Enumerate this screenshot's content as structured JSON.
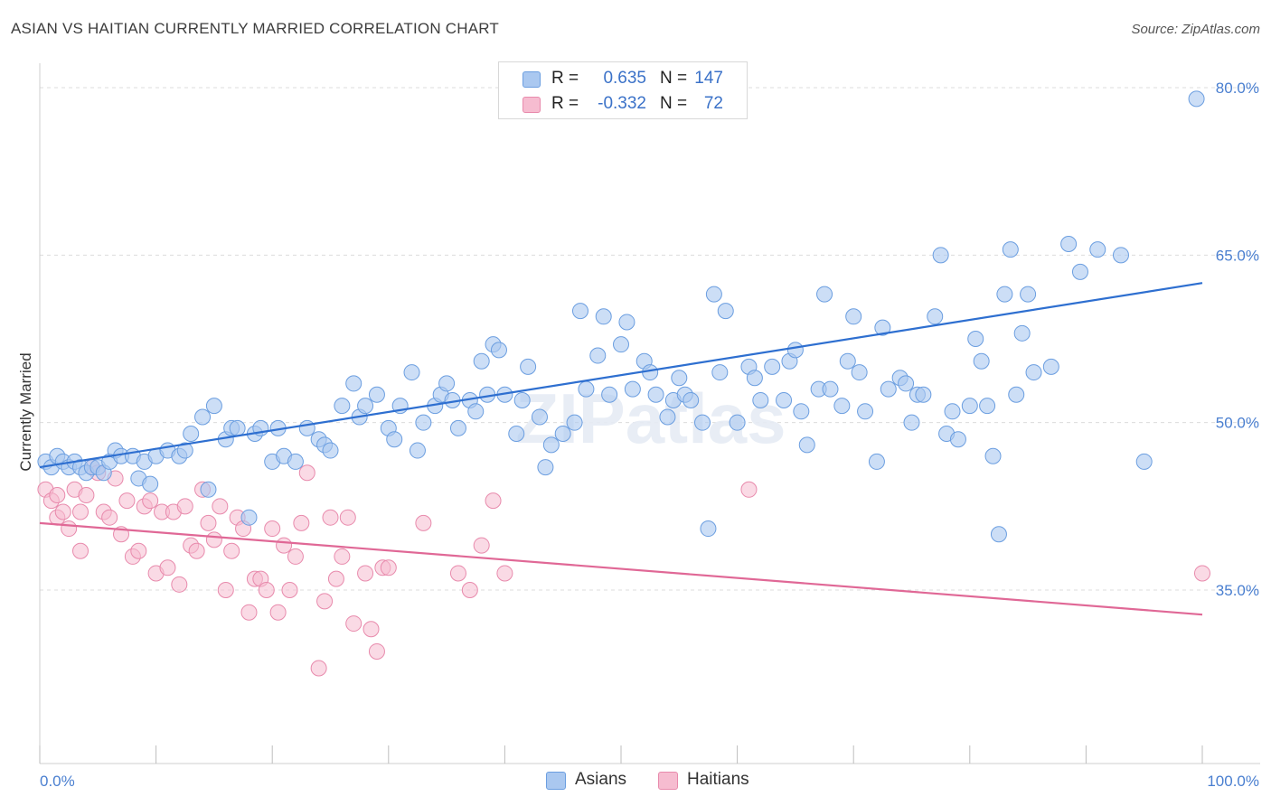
{
  "title": "ASIAN VS HAITIAN CURRENTLY MARRIED CORRELATION CHART",
  "source": "Source: ZipAtlas.com",
  "watermark": "ZIPatlas",
  "colors": {
    "asian_fill": "#aac8f0",
    "asian_stroke": "#6b9ee0",
    "asian_line": "#2e6fd0",
    "haitian_fill": "#f6bcd0",
    "haitian_stroke": "#e88aac",
    "haitian_line": "#e06896",
    "tick_text": "#4a7fd0",
    "grid": "#dcdcdc"
  },
  "legend": {
    "rows": [
      {
        "r_label": "R =",
        "r_value": "0.635",
        "n_label": "N =",
        "n_value": "147"
      },
      {
        "r_label": "R =",
        "r_value": "-0.332",
        "n_label": "N =",
        "n_value": "72"
      }
    ]
  },
  "bottom_legend": {
    "asians": "Asians",
    "haitians": "Haitians"
  },
  "chart_data": {
    "type": "scatter",
    "title": "ASIAN VS HAITIAN CURRENTLY MARRIED CORRELATION CHART",
    "xlabel": "",
    "ylabel": "Currently Married",
    "xlim": [
      0,
      100
    ],
    "ylim": [
      20,
      83
    ],
    "x_tick_labels": [
      "0.0%",
      "100.0%"
    ],
    "y_tick_labels": [
      "35.0%",
      "50.0%",
      "65.0%",
      "80.0%"
    ],
    "y_ticks": [
      35,
      50,
      65,
      80
    ],
    "grid": true,
    "legend_position": "top-center",
    "series": [
      {
        "name": "Asians",
        "r": 0.635,
        "n": 147,
        "trend": {
          "x": [
            0,
            100
          ],
          "y": [
            46.0,
            62.5
          ]
        },
        "points": [
          [
            0.5,
            46.5
          ],
          [
            1,
            46
          ],
          [
            1.5,
            47
          ],
          [
            2,
            46.5
          ],
          [
            2.5,
            46
          ],
          [
            3,
            46.5
          ],
          [
            3.5,
            46
          ],
          [
            4,
            45.5
          ],
          [
            4.5,
            46
          ],
          [
            5,
            46
          ],
          [
            5.5,
            45.5
          ],
          [
            6,
            46.5
          ],
          [
            6.5,
            47.5
          ],
          [
            7,
            47
          ],
          [
            8,
            47
          ],
          [
            8.5,
            45
          ],
          [
            9,
            46.5
          ],
          [
            9.5,
            44.5
          ],
          [
            10,
            47
          ],
          [
            11,
            47.5
          ],
          [
            12,
            47
          ],
          [
            12.5,
            47.5
          ],
          [
            13,
            49
          ],
          [
            14,
            50.5
          ],
          [
            14.5,
            44
          ],
          [
            15,
            51.5
          ],
          [
            16,
            48.5
          ],
          [
            16.5,
            49.5
          ],
          [
            17,
            49.5
          ],
          [
            18,
            41.5
          ],
          [
            18.5,
            49
          ],
          [
            19,
            49.5
          ],
          [
            20,
            46.5
          ],
          [
            20.5,
            49.5
          ],
          [
            21,
            47
          ],
          [
            22,
            46.5
          ],
          [
            23,
            49.5
          ],
          [
            24,
            48.5
          ],
          [
            24.5,
            48
          ],
          [
            25,
            47.5
          ],
          [
            26,
            51.5
          ],
          [
            27,
            53.5
          ],
          [
            27.5,
            50.5
          ],
          [
            28,
            51.5
          ],
          [
            29,
            52.5
          ],
          [
            30,
            49.5
          ],
          [
            30.5,
            48.5
          ],
          [
            31,
            51.5
          ],
          [
            32,
            54.5
          ],
          [
            32.5,
            47.5
          ],
          [
            33,
            50
          ],
          [
            34,
            51.5
          ],
          [
            34.5,
            52.5
          ],
          [
            35,
            53.5
          ],
          [
            35.5,
            52
          ],
          [
            36,
            49.5
          ],
          [
            37,
            52
          ],
          [
            37.5,
            51
          ],
          [
            38,
            55.5
          ],
          [
            38.5,
            52.5
          ],
          [
            39,
            57
          ],
          [
            39.5,
            56.5
          ],
          [
            40,
            52.5
          ],
          [
            41,
            49
          ],
          [
            41.5,
            52
          ],
          [
            42,
            55
          ],
          [
            43,
            50.5
          ],
          [
            43.5,
            46
          ],
          [
            44,
            48
          ],
          [
            45,
            49
          ],
          [
            46,
            50
          ],
          [
            46.5,
            60
          ],
          [
            47,
            53
          ],
          [
            48,
            56
          ],
          [
            48.5,
            59.5
          ],
          [
            49,
            52.5
          ],
          [
            50,
            57
          ],
          [
            50.5,
            59
          ],
          [
            51,
            53
          ],
          [
            52,
            55.5
          ],
          [
            52.5,
            54.5
          ],
          [
            53,
            52.5
          ],
          [
            54,
            50.5
          ],
          [
            54.5,
            52
          ],
          [
            55,
            54
          ],
          [
            55.5,
            52.5
          ],
          [
            56,
            52
          ],
          [
            57,
            50
          ],
          [
            57.5,
            40.5
          ],
          [
            58,
            61.5
          ],
          [
            58.5,
            54.5
          ],
          [
            59,
            60
          ],
          [
            60,
            50
          ],
          [
            61,
            55
          ],
          [
            61.5,
            54
          ],
          [
            62,
            52
          ],
          [
            63,
            55
          ],
          [
            64,
            52
          ],
          [
            64.5,
            55.5
          ],
          [
            65,
            56.5
          ],
          [
            65.5,
            51
          ],
          [
            66,
            48
          ],
          [
            67,
            53
          ],
          [
            67.5,
            61.5
          ],
          [
            68,
            53
          ],
          [
            69,
            51.5
          ],
          [
            69.5,
            55.5
          ],
          [
            70,
            59.5
          ],
          [
            70.5,
            54.5
          ],
          [
            71,
            51
          ],
          [
            72,
            46.5
          ],
          [
            72.5,
            58.5
          ],
          [
            73,
            53
          ],
          [
            74,
            54
          ],
          [
            74.5,
            53.5
          ],
          [
            75,
            50
          ],
          [
            75.5,
            52.5
          ],
          [
            76,
            52.5
          ],
          [
            77,
            59.5
          ],
          [
            77.5,
            65
          ],
          [
            78,
            49
          ],
          [
            78.5,
            51
          ],
          [
            79,
            48.5
          ],
          [
            80,
            51.5
          ],
          [
            80.5,
            57.5
          ],
          [
            81,
            55.5
          ],
          [
            81.5,
            51.5
          ],
          [
            82,
            47
          ],
          [
            82.5,
            40
          ],
          [
            83,
            61.5
          ],
          [
            83.5,
            65.5
          ],
          [
            84,
            52.5
          ],
          [
            84.5,
            58
          ],
          [
            85,
            61.5
          ],
          [
            85.5,
            54.5
          ],
          [
            87,
            55
          ],
          [
            88.5,
            66
          ],
          [
            89.5,
            63.5
          ],
          [
            91,
            65.5
          ],
          [
            93,
            65
          ],
          [
            95,
            46.5
          ],
          [
            99.5,
            79
          ]
        ]
      },
      {
        "name": "Haitians",
        "r": -0.332,
        "n": 72,
        "trend": {
          "x": [
            0,
            100
          ],
          "y": [
            41.0,
            32.8
          ]
        },
        "points": [
          [
            0.5,
            44
          ],
          [
            1,
            43
          ],
          [
            1.5,
            43.5
          ],
          [
            1.5,
            41.5
          ],
          [
            2,
            42
          ],
          [
            2.5,
            40.5
          ],
          [
            3,
            44
          ],
          [
            3.5,
            42
          ],
          [
            3.5,
            38.5
          ],
          [
            4,
            43.5
          ],
          [
            4.5,
            46
          ],
          [
            5,
            45.5
          ],
          [
            5.5,
            42
          ],
          [
            6,
            41.5
          ],
          [
            6.5,
            45
          ],
          [
            7,
            40
          ],
          [
            7.5,
            43
          ],
          [
            8,
            38
          ],
          [
            8.5,
            38.5
          ],
          [
            9,
            42.5
          ],
          [
            9.5,
            43
          ],
          [
            10,
            36.5
          ],
          [
            10.5,
            42
          ],
          [
            11,
            37
          ],
          [
            11.5,
            42
          ],
          [
            12,
            35.5
          ],
          [
            12.5,
            42.5
          ],
          [
            13,
            39
          ],
          [
            13.5,
            38.5
          ],
          [
            14,
            44
          ],
          [
            14.5,
            41
          ],
          [
            15,
            39.5
          ],
          [
            15.5,
            42.5
          ],
          [
            16,
            35
          ],
          [
            16.5,
            38.5
          ],
          [
            17,
            41.5
          ],
          [
            17.5,
            40.5
          ],
          [
            18,
            33
          ],
          [
            18.5,
            36
          ],
          [
            19,
            36
          ],
          [
            19.5,
            35
          ],
          [
            20,
            40.5
          ],
          [
            20.5,
            33
          ],
          [
            21,
            39
          ],
          [
            21.5,
            35
          ],
          [
            22,
            38
          ],
          [
            22.5,
            41
          ],
          [
            23,
            45.5
          ],
          [
            24,
            28
          ],
          [
            24.5,
            34
          ],
          [
            25,
            41.5
          ],
          [
            25.5,
            36
          ],
          [
            26,
            38
          ],
          [
            26.5,
            41.5
          ],
          [
            27,
            32
          ],
          [
            28,
            36.5
          ],
          [
            28.5,
            31.5
          ],
          [
            29,
            29.5
          ],
          [
            29.5,
            37
          ],
          [
            30,
            37
          ],
          [
            33,
            41
          ],
          [
            36,
            36.5
          ],
          [
            37,
            35
          ],
          [
            38,
            39
          ],
          [
            39,
            43
          ],
          [
            40,
            36.5
          ],
          [
            61,
            44
          ],
          [
            100,
            36.5
          ]
        ]
      }
    ]
  }
}
